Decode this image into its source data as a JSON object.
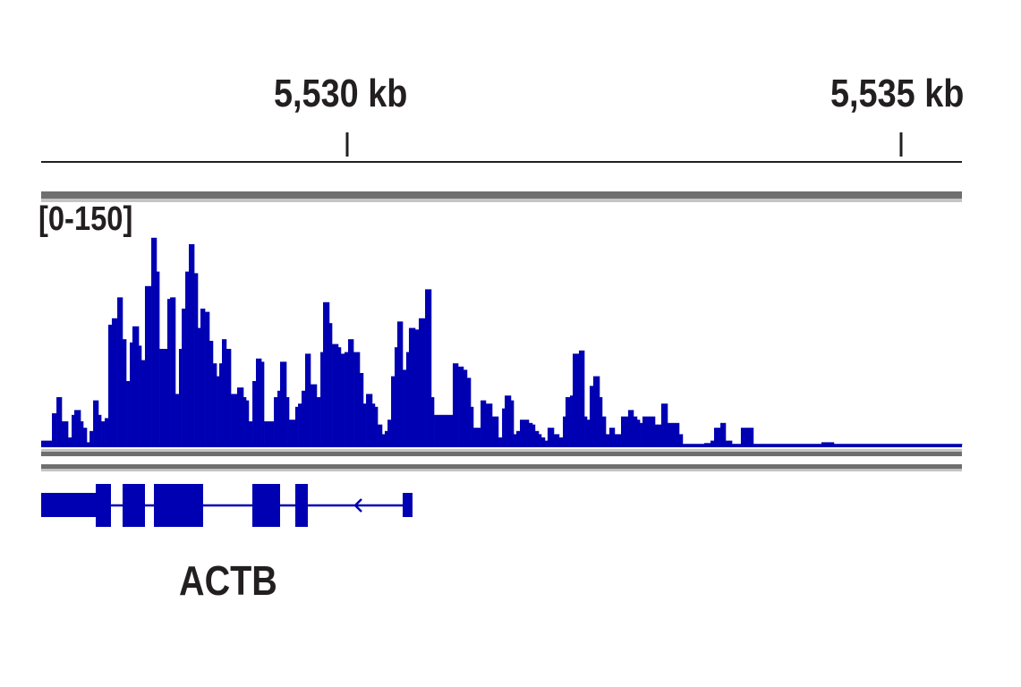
{
  "chart_data": {
    "type": "area",
    "xlabel": "",
    "ylabel": "",
    "x_ticks": [
      {
        "value": 5530,
        "label": "5,530 kb"
      },
      {
        "value": 5535,
        "label": "5,535 kb"
      }
    ],
    "xlim_kb": [
      5527.237,
      5535.55
    ],
    "ylim": [
      0,
      150
    ],
    "range_label": "[0-150]",
    "track_color": "#0000b3",
    "segments": [
      [
        5527.237,
        3
      ],
      [
        5527.334,
        20
      ],
      [
        5527.375,
        30
      ],
      [
        5527.423,
        15
      ],
      [
        5527.48,
        5
      ],
      [
        5527.512,
        19
      ],
      [
        5527.536,
        22
      ],
      [
        5527.593,
        15
      ],
      [
        5527.617,
        11
      ],
      [
        5527.649,
        2
      ],
      [
        5527.674,
        9
      ],
      [
        5527.706,
        28
      ],
      [
        5527.754,
        19
      ],
      [
        5527.779,
        15
      ],
      [
        5527.811,
        17
      ],
      [
        5527.843,
        75
      ],
      [
        5527.875,
        79
      ],
      [
        5527.924,
        92
      ],
      [
        5527.972,
        66
      ],
      [
        5528.005,
        40
      ],
      [
        5528.037,
        64
      ],
      [
        5528.061,
        74
      ],
      [
        5528.118,
        62
      ],
      [
        5528.142,
        53
      ],
      [
        5528.174,
        99
      ],
      [
        5528.231,
        129
      ],
      [
        5528.279,
        108
      ],
      [
        5528.304,
        60
      ],
      [
        5528.376,
        91
      ],
      [
        5528.401,
        92
      ],
      [
        5528.449,
        32
      ],
      [
        5528.481,
        60
      ],
      [
        5528.506,
        85
      ],
      [
        5528.538,
        108
      ],
      [
        5528.57,
        125
      ],
      [
        5528.619,
        107
      ],
      [
        5528.651,
        73
      ],
      [
        5528.675,
        85
      ],
      [
        5528.716,
        83
      ],
      [
        5528.756,
        65
      ],
      [
        5528.788,
        51
      ],
      [
        5528.821,
        43
      ],
      [
        5528.845,
        51
      ],
      [
        5528.869,
        66
      ],
      [
        5528.909,
        60
      ],
      [
        5528.95,
        32
      ],
      [
        5529.006,
        36
      ],
      [
        5529.063,
        30
      ],
      [
        5529.087,
        28
      ],
      [
        5529.111,
        15
      ],
      [
        5529.144,
        40
      ],
      [
        5529.176,
        54
      ],
      [
        5529.225,
        52
      ],
      [
        5529.249,
        15
      ],
      [
        5529.338,
        30
      ],
      [
        5529.37,
        34
      ],
      [
        5529.394,
        52
      ],
      [
        5529.451,
        30
      ],
      [
        5529.475,
        16
      ],
      [
        5529.531,
        24
      ],
      [
        5529.556,
        26
      ],
      [
        5529.588,
        34
      ],
      [
        5529.62,
        57
      ],
      [
        5529.669,
        38
      ],
      [
        5529.725,
        30
      ],
      [
        5529.758,
        58
      ],
      [
        5529.782,
        89
      ],
      [
        5529.838,
        76
      ],
      [
        5529.863,
        63
      ],
      [
        5529.919,
        61
      ],
      [
        5529.943,
        57
      ],
      [
        5529.976,
        58
      ],
      [
        5530.008,
        66
      ],
      [
        5530.057,
        58
      ],
      [
        5530.113,
        45
      ],
      [
        5530.145,
        26
      ],
      [
        5530.17,
        32
      ],
      [
        5530.226,
        26
      ],
      [
        5530.25,
        24
      ],
      [
        5530.275,
        13
      ],
      [
        5530.315,
        7
      ],
      [
        5530.339,
        9
      ],
      [
        5530.364,
        16
      ],
      [
        5530.396,
        43
      ],
      [
        5530.428,
        61
      ],
      [
        5530.452,
        77
      ],
      [
        5530.501,
        47
      ],
      [
        5530.533,
        58
      ],
      [
        5530.557,
        73
      ],
      [
        5530.614,
        72
      ],
      [
        5530.646,
        79
      ],
      [
        5530.703,
        97
      ],
      [
        5530.759,
        30
      ],
      [
        5530.784,
        19
      ],
      [
        5530.953,
        51
      ],
      [
        5531.002,
        49
      ],
      [
        5531.05,
        47
      ],
      [
        5531.082,
        42
      ],
      [
        5531.115,
        24
      ],
      [
        5531.139,
        11
      ],
      [
        5531.204,
        28
      ],
      [
        5531.252,
        26
      ],
      [
        5531.309,
        18
      ],
      [
        5531.365,
        5
      ],
      [
        5531.398,
        23
      ],
      [
        5531.422,
        31
      ],
      [
        5531.478,
        28
      ],
      [
        5531.503,
        7
      ],
      [
        5531.527,
        9
      ],
      [
        5531.559,
        16
      ],
      [
        5531.64,
        14
      ],
      [
        5531.672,
        13
      ],
      [
        5531.696,
        9
      ],
      [
        5531.729,
        7
      ],
      [
        5531.753,
        5
      ],
      [
        5531.785,
        3
      ],
      [
        5531.809,
        11
      ],
      [
        5531.866,
        7
      ],
      [
        5531.914,
        5
      ],
      [
        5531.947,
        18
      ],
      [
        5531.971,
        30
      ],
      [
        5532.011,
        31
      ],
      [
        5532.036,
        57
      ],
      [
        5532.092,
        59
      ],
      [
        5532.141,
        18
      ],
      [
        5532.165,
        16
      ],
      [
        5532.189,
        37
      ],
      [
        5532.221,
        43
      ],
      [
        5532.278,
        30
      ],
      [
        5532.302,
        18
      ],
      [
        5532.335,
        7
      ],
      [
        5532.367,
        11
      ],
      [
        5532.415,
        7
      ],
      [
        5532.472,
        18
      ],
      [
        5532.536,
        22
      ],
      [
        5532.585,
        18
      ],
      [
        5532.617,
        16
      ],
      [
        5532.642,
        14
      ],
      [
        5532.666,
        18
      ],
      [
        5532.779,
        13
      ],
      [
        5532.835,
        26
      ],
      [
        5532.892,
        14
      ],
      [
        5532.997,
        7
      ],
      [
        5533.029,
        1
      ],
      [
        5533.223,
        1.5
      ],
      [
        5533.28,
        3
      ],
      [
        5533.312,
        11
      ],
      [
        5533.369,
        14
      ],
      [
        5533.417,
        3
      ],
      [
        5533.474,
        1
      ],
      [
        5533.554,
        11
      ],
      [
        5533.667,
        1
      ],
      [
        5534.281,
        2
      ],
      [
        5534.394,
        1
      ]
    ]
  },
  "gene": {
    "name": "ACTB",
    "strand": "-",
    "color": "#0000b3"
  }
}
